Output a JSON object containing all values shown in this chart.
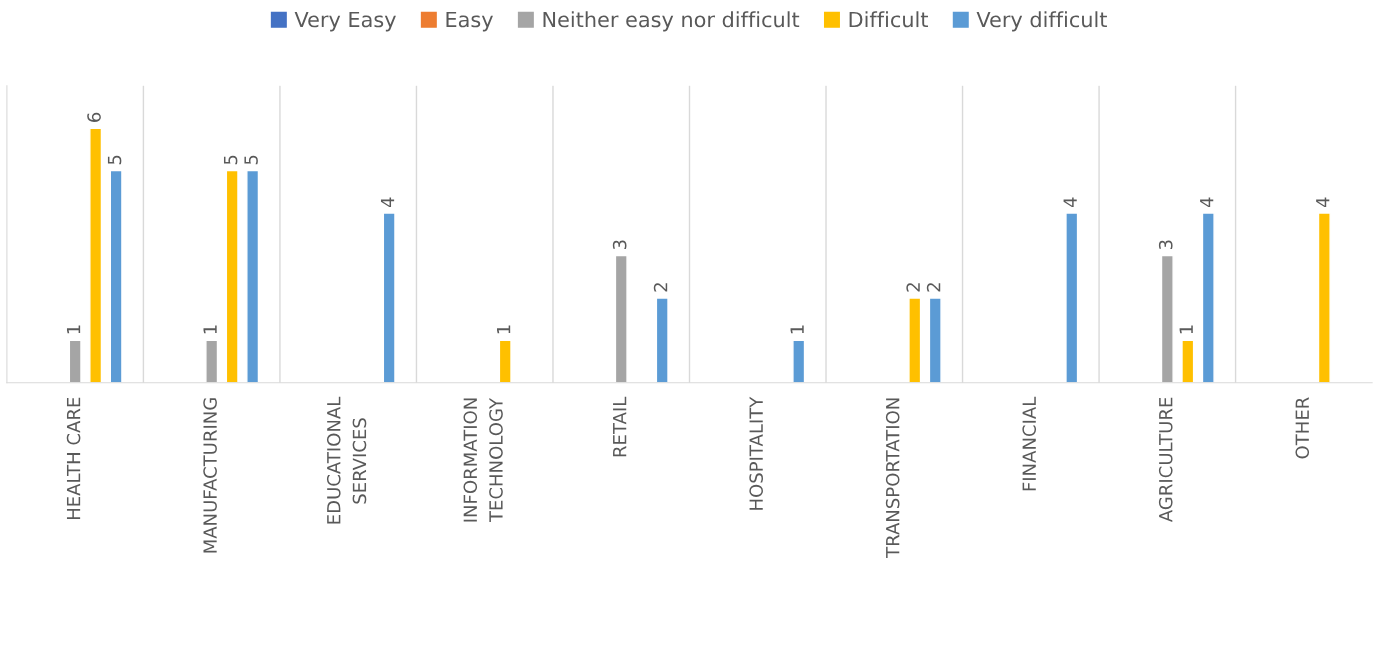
{
  "chart_data": {
    "type": "bar",
    "categories": [
      "HEALTH CARE",
      "MANUFACTURING",
      "EDUCATIONAL\nSERVICES",
      "INFORMATION\nTECHNOLOGY",
      "RETAIL",
      "HOSPITALITY",
      "TRANSPORTATION",
      "FINANCIAL",
      "AGRICULTURE",
      "OTHER"
    ],
    "series": [
      {
        "name": "Very Easy",
        "color": "#4472c4",
        "values": [
          null,
          null,
          null,
          null,
          null,
          null,
          null,
          null,
          null,
          null
        ]
      },
      {
        "name": "Easy",
        "color": "#ed7d31",
        "values": [
          null,
          null,
          null,
          null,
          null,
          null,
          null,
          null,
          null,
          null
        ]
      },
      {
        "name": "Neither easy nor difficult",
        "color": "#a5a5a5",
        "values": [
          1,
          1,
          null,
          null,
          3,
          null,
          null,
          null,
          3,
          null
        ]
      },
      {
        "name": "Difficult",
        "color": "#ffc000",
        "values": [
          6,
          5,
          null,
          1,
          null,
          null,
          2,
          null,
          1,
          4
        ]
      },
      {
        "name": "Very difficult",
        "color": "#5b9bd5",
        "values": [
          5,
          5,
          4,
          null,
          2,
          1,
          2,
          4,
          4,
          null
        ]
      }
    ],
    "ylim": [
      0,
      7
    ],
    "data_labels": true,
    "legend": "top",
    "grid": "x",
    "tick_labels": "x"
  }
}
